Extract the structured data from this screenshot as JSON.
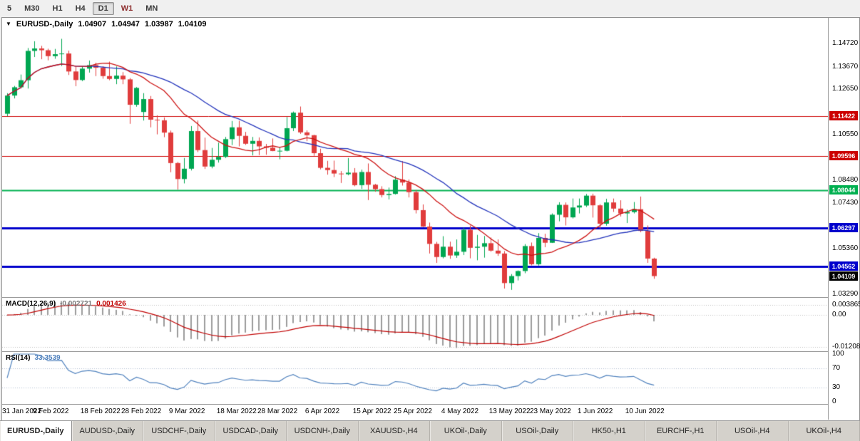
{
  "icons": {
    "chart_menu": "▼"
  },
  "toolbar": {
    "timeframes": [
      {
        "label": "5"
      },
      {
        "label": "M30"
      },
      {
        "label": "H1"
      },
      {
        "label": "H4"
      },
      {
        "label": "D1",
        "active": true
      },
      {
        "label": "W1",
        "color": "#8b2a2a"
      },
      {
        "label": "MN"
      }
    ]
  },
  "chart": {
    "title": "EURUSD-,Daily",
    "open": "1.04907",
    "high": "1.04947",
    "low": "1.03987",
    "close": "1.04109",
    "scale": {
      "top": 1.159,
      "bottom": 1.0315
    },
    "y_ticks": [
      {
        "label": "1.14720",
        "value": 1.1472
      },
      {
        "label": "1.13670",
        "value": 1.1367
      },
      {
        "label": "1.12650",
        "value": 1.1265
      },
      {
        "label": "1.10550",
        "value": 1.1055
      },
      {
        "label": "1.08480",
        "value": 1.0848
      },
      {
        "label": "1.07430",
        "value": 1.0743
      },
      {
        "label": "1.05360",
        "value": 1.0536
      },
      {
        "label": "1.03290",
        "value": 1.0329
      }
    ],
    "levels": [
      {
        "label": "1.11422",
        "value": 1.11422,
        "color": "#cc0000",
        "width": 1
      },
      {
        "label": "1.09596",
        "value": 1.09596,
        "color": "#cc0000",
        "width": 1
      },
      {
        "label": "1.08044",
        "value": 1.08044,
        "color": "#00b050",
        "width": 2
      },
      {
        "label": "1.06297",
        "value": 1.06297,
        "color": "#0000cc",
        "width": 3
      },
      {
        "label": "1.04562",
        "value": 1.04562,
        "color": "#0000cc",
        "width": 3
      }
    ],
    "current_price": {
      "label": "1.04109",
      "value": 1.04109,
      "bg": "#000000"
    }
  },
  "chart_data": {
    "type": "candlestick",
    "symbol": "EURUSD-",
    "timeframe": "Daily",
    "x_labels": [
      {
        "label": "31 Jan 2022",
        "index": 0
      },
      {
        "label": "9 Feb 2022",
        "index": 7
      },
      {
        "label": "18 Feb 2022",
        "index": 14
      },
      {
        "label": "28 Feb 2022",
        "index": 20
      },
      {
        "label": "9 Mar 2022",
        "index": 27
      },
      {
        "label": "18 Mar 2022",
        "index": 34
      },
      {
        "label": "28 Mar 2022",
        "index": 40
      },
      {
        "label": "6 Apr 2022",
        "index": 47
      },
      {
        "label": "15 Apr 2022",
        "index": 54
      },
      {
        "label": "25 Apr 2022",
        "index": 60
      },
      {
        "label": "4 May 2022",
        "index": 67
      },
      {
        "label": "13 May 2022",
        "index": 74
      },
      {
        "label": "23 May 2022",
        "index": 80
      },
      {
        "label": "1 Jun 2022",
        "index": 87
      },
      {
        "label": "10 Jun 2022",
        "index": 94
      }
    ],
    "moving_averages": [
      {
        "type": "sma",
        "period": 13,
        "color": "#cc1111"
      },
      {
        "type": "sma",
        "period": 24,
        "color": "#2233bb"
      }
    ],
    "candles": [
      [
        1.1152,
        1.1246,
        1.1141,
        1.1235
      ],
      [
        1.1235,
        1.1279,
        1.1222,
        1.1273
      ],
      [
        1.1273,
        1.1331,
        1.1267,
        1.1305
      ],
      [
        1.1305,
        1.1452,
        1.1267,
        1.1439
      ],
      [
        1.1439,
        1.1483,
        1.1411,
        1.145
      ],
      [
        1.145,
        1.1462,
        1.1401,
        1.1442
      ],
      [
        1.1442,
        1.1449,
        1.1396,
        1.1415
      ],
      [
        1.1415,
        1.1448,
        1.1403,
        1.1424
      ],
      [
        1.1424,
        1.1494,
        1.137,
        1.1427
      ],
      [
        1.1427,
        1.144,
        1.1329,
        1.1345
      ],
      [
        1.1345,
        1.1369,
        1.1278,
        1.1306
      ],
      [
        1.1306,
        1.1368,
        1.1301,
        1.1358
      ],
      [
        1.1358,
        1.1395,
        1.134,
        1.1374
      ],
      [
        1.1374,
        1.1385,
        1.1324,
        1.1362
      ],
      [
        1.1362,
        1.1369,
        1.1312,
        1.1324
      ],
      [
        1.1324,
        1.139,
        1.1305,
        1.1311
      ],
      [
        1.1311,
        1.1368,
        1.1287,
        1.1326
      ],
      [
        1.1326,
        1.1342,
        1.1287,
        1.1309
      ],
      [
        1.1309,
        1.1315,
        1.1106,
        1.1193
      ],
      [
        1.1193,
        1.1274,
        1.1184,
        1.127
      ],
      [
        1.116,
        1.1246,
        1.1121,
        1.1219
      ],
      [
        1.1219,
        1.1233,
        1.109,
        1.1125
      ],
      [
        1.1125,
        1.1145,
        1.1058,
        1.1122
      ],
      [
        1.1122,
        1.1135,
        1.1045,
        1.1066
      ],
      [
        1.1066,
        1.1075,
        1.0885,
        1.0927
      ],
      [
        1.0927,
        1.0932,
        1.0806,
        1.0854
      ],
      [
        1.0854,
        1.095,
        1.0834,
        1.0901
      ],
      [
        1.0901,
        1.1096,
        1.0893,
        1.1073
      ],
      [
        1.1073,
        1.1121,
        1.0977,
        1.0986
      ],
      [
        1.0986,
        1.1043,
        1.09,
        1.0911
      ],
      [
        1.0911,
        1.0996,
        1.0903,
        1.0942
      ],
      [
        1.0942,
        1.102,
        1.0929,
        1.0955
      ],
      [
        1.0955,
        1.1046,
        1.095,
        1.1036
      ],
      [
        1.1036,
        1.1119,
        1.1009,
        1.109
      ],
      [
        1.109,
        1.112,
        1.1003,
        1.1051
      ],
      [
        1.1051,
        1.1069,
        1.101,
        1.1015
      ],
      [
        1.1015,
        1.1046,
        1.0962,
        1.1028
      ],
      [
        1.1028,
        1.1044,
        1.0963,
        1.1003
      ],
      [
        1.1003,
        1.1014,
        1.0965,
        1.0997
      ],
      [
        1.0997,
        1.1039,
        1.0981,
        1.0982
      ],
      [
        1.0982,
        1.0999,
        1.0944,
        1.0983
      ],
      [
        1.0983,
        1.1137,
        1.098,
        1.1086
      ],
      [
        1.1086,
        1.1162,
        1.1073,
        1.1157
      ],
      [
        1.1157,
        1.1185,
        1.106,
        1.1067
      ],
      [
        1.1067,
        1.1076,
        1.1027,
        1.1054
      ],
      [
        1.1054,
        1.1056,
        1.096,
        1.0972
      ],
      [
        1.0972,
        1.0992,
        1.0898,
        1.0905
      ],
      [
        1.0905,
        1.0937,
        1.0874,
        1.0895
      ],
      [
        1.0895,
        1.0938,
        1.0863,
        1.0879
      ],
      [
        1.0879,
        1.089,
        1.0836,
        1.0876
      ],
      [
        1.0876,
        1.095,
        1.0871,
        1.0883
      ],
      [
        1.0883,
        1.0904,
        1.0821,
        1.0826
      ],
      [
        1.0826,
        1.0897,
        1.0809,
        1.0886
      ],
      [
        1.0886,
        1.0925,
        1.0758,
        1.0828
      ],
      [
        1.0828,
        1.0832,
        1.0796,
        1.0808
      ],
      [
        1.0808,
        1.0821,
        1.077,
        1.0781
      ],
      [
        1.0781,
        1.0815,
        1.0761,
        1.0786
      ],
      [
        1.0786,
        1.0867,
        1.0783,
        1.0851
      ],
      [
        1.0851,
        1.0936,
        1.0824,
        1.0838
      ],
      [
        1.0838,
        1.0852,
        1.077,
        1.0794
      ],
      [
        1.0794,
        1.0804,
        1.0697,
        1.0712
      ],
      [
        1.0712,
        1.0738,
        1.0635,
        1.0637
      ],
      [
        1.0637,
        1.0655,
        1.0514,
        1.0558
      ],
      [
        1.0558,
        1.0567,
        1.0471,
        1.0498
      ],
      [
        1.0498,
        1.0593,
        1.0492,
        1.0545
      ],
      [
        1.0545,
        1.0568,
        1.049,
        1.0505
      ],
      [
        1.0505,
        1.0578,
        1.0494,
        1.0522
      ],
      [
        1.0522,
        1.0632,
        1.0507,
        1.0622
      ],
      [
        1.0622,
        1.0642,
        1.0492,
        1.054
      ],
      [
        1.054,
        1.0599,
        1.0483,
        1.0545
      ],
      [
        1.0545,
        1.0594,
        1.0495,
        1.0561
      ],
      [
        1.0561,
        1.0587,
        1.0522,
        1.0527
      ],
      [
        1.0527,
        1.0578,
        1.0503,
        1.0514
      ],
      [
        1.0514,
        1.0525,
        1.0354,
        1.0379
      ],
      [
        1.0379,
        1.042,
        1.0348,
        1.0411
      ],
      [
        1.0411,
        1.0437,
        1.0391,
        1.0434
      ],
      [
        1.0434,
        1.0557,
        1.0424,
        1.0548
      ],
      [
        1.0548,
        1.0564,
        1.046,
        1.0465
      ],
      [
        1.0465,
        1.0607,
        1.0459,
        1.0585
      ],
      [
        1.0585,
        1.0604,
        1.0543,
        1.0563
      ],
      [
        1.0563,
        1.0697,
        1.0562,
        1.0691
      ],
      [
        1.0691,
        1.0748,
        1.0661,
        1.0736
      ],
      [
        1.0736,
        1.0747,
        1.0642,
        1.0679
      ],
      [
        1.0679,
        1.0765,
        1.0674,
        1.0724
      ],
      [
        1.0724,
        1.0765,
        1.0697,
        1.0733
      ],
      [
        1.0733,
        1.0786,
        1.0726,
        1.0778
      ],
      [
        1.0778,
        1.0787,
        1.0678,
        1.0734
      ],
      [
        1.0734,
        1.0739,
        1.0627,
        1.065
      ],
      [
        1.065,
        1.0764,
        1.0641,
        1.0747
      ],
      [
        1.0747,
        1.0765,
        1.0704,
        1.0719
      ],
      [
        1.0719,
        1.0757,
        1.0683,
        1.0697
      ],
      [
        1.0697,
        1.0714,
        1.0653,
        1.0703
      ],
      [
        1.0703,
        1.0749,
        1.0697,
        1.0716
      ],
      [
        1.0716,
        1.0774,
        1.0611,
        1.0617
      ],
      [
        1.0617,
        1.0642,
        1.0471,
        1.0491
      ],
      [
        1.04907,
        1.04947,
        1.03987,
        1.04109
      ]
    ]
  },
  "macd": {
    "label": "MACD(12,26,9)",
    "value_main": "-0.002721",
    "value_signal": "0.001426",
    "fast": 12,
    "slow": 26,
    "signal": 9,
    "axis_labels": [
      {
        "label": "0.003865",
        "value": 0.003865
      },
      {
        "label": "0.00",
        "value": 0
      },
      {
        "label": "-0.01208",
        "value": -0.01208
      }
    ]
  },
  "rsi": {
    "label": "RSI(14)",
    "value": "33.3539",
    "period": 14,
    "levels": [
      70,
      30
    ],
    "axis_labels": [
      {
        "label": "100",
        "value": 100
      },
      {
        "label": "70",
        "value": 70
      },
      {
        "label": "30",
        "value": 30
      },
      {
        "label": "0",
        "value": 0
      }
    ]
  },
  "tabs": [
    {
      "label": "EURUSD-,Daily",
      "active": true
    },
    {
      "label": "AUDUSD-,Daily"
    },
    {
      "label": "USDCHF-,Daily"
    },
    {
      "label": "USDCAD-,Daily"
    },
    {
      "label": "USDCNH-,Daily"
    },
    {
      "label": "XAUUSD-,H4"
    },
    {
      "label": "UKOil-,Daily"
    },
    {
      "label": "USOil-,Daily"
    },
    {
      "label": "HK50-,H1"
    },
    {
      "label": "EURCHF-,H1"
    },
    {
      "label": "USOil-,H4"
    },
    {
      "label": "UKOil-,H4"
    }
  ],
  "colors": {
    "up": "#00a651",
    "down": "#e03c3c",
    "ma_fast": "#cc1111",
    "ma_slow": "#2233bb",
    "macd_hist": "#9c9c9c",
    "macd_signal": "#c00000",
    "rsi_line": "#4f81bd",
    "grid_dotted": "#c0c0c0"
  }
}
